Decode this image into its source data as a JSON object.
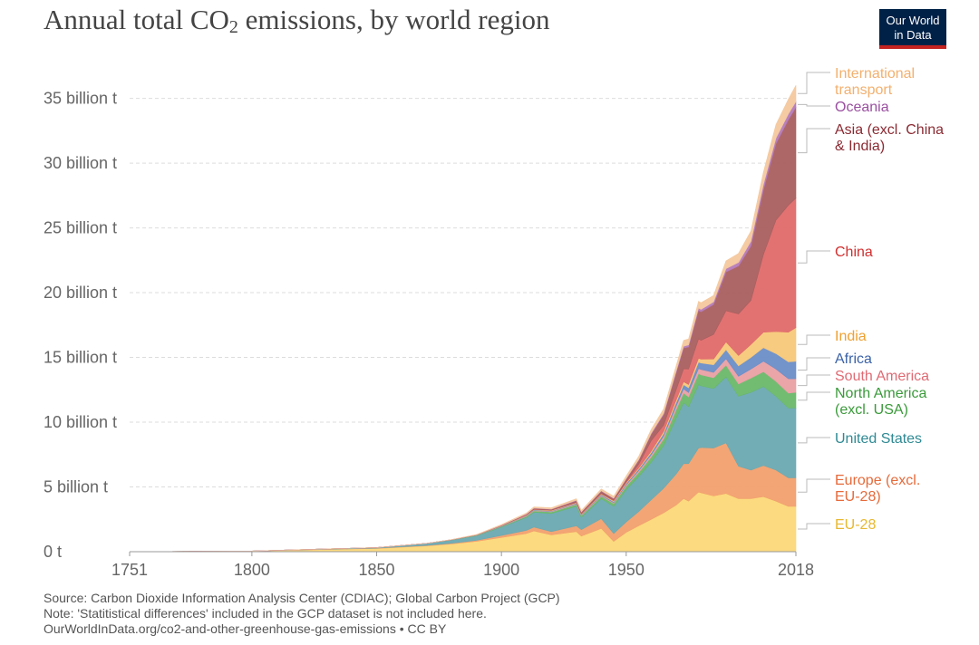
{
  "header": {
    "title_main": "Annual total CO",
    "title_sub": "2",
    "title_rest": " emissions, by world region",
    "logo_line1": "Our World",
    "logo_line2": "in Data"
  },
  "footer": {
    "source": "Source: Carbon Dioxide Information Analysis Center (CDIAC); Global Carbon Project (GCP)",
    "note": "Note: 'Statitistical differences' included in the GCP dataset is not included here.",
    "url": "OurWorldInData.org/co2-and-other-greenhouse-gas-emissions • CC BY"
  },
  "chart_data": {
    "type": "area",
    "stacked": true,
    "grid": "horizontal dashed",
    "legend": "right, end labels",
    "x": [
      1751,
      1800,
      1850,
      1870,
      1880,
      1890,
      1900,
      1910,
      1913,
      1920,
      1930,
      1932,
      1940,
      1945,
      1950,
      1955,
      1960,
      1965,
      1970,
      1973,
      1975,
      1979,
      1980,
      1985,
      1990,
      1995,
      2000,
      2005,
      2010,
      2015,
      2018
    ],
    "xlim": [
      1751,
      2018
    ],
    "x_ticks": [
      "1751",
      "1800",
      "1850",
      "1900",
      "1950",
      "2018"
    ],
    "ylim": [
      0,
      37000000000
    ],
    "y_ticks": [
      {
        "value": 0,
        "label": "0 t"
      },
      {
        "value": 5000000000,
        "label": "5 billion t"
      },
      {
        "value": 10000000000,
        "label": "10 billion t"
      },
      {
        "value": 15000000000,
        "label": "15 billion t"
      },
      {
        "value": 20000000000,
        "label": "20 billion t"
      },
      {
        "value": 25000000000,
        "label": "25 billion t"
      },
      {
        "value": 30000000000,
        "label": "30 billion t"
      },
      {
        "value": 35000000000,
        "label": "35 billion t"
      }
    ],
    "series": [
      {
        "name": "EU-28",
        "color": "#fcd878",
        "label_color": "#e8b830",
        "values": [
          0,
          0.05,
          0.25,
          0.45,
          0.6,
          0.8,
          1.1,
          1.4,
          1.6,
          1.3,
          1.55,
          1.2,
          1.8,
          0.8,
          1.5,
          2.0,
          2.5,
          3.0,
          3.6,
          4.1,
          3.9,
          4.6,
          4.55,
          4.3,
          4.5,
          4.1,
          4.1,
          4.25,
          3.9,
          3.5,
          3.5
        ]
      },
      {
        "name": "Europe (excl. EU-28)",
        "color": "#f2a06e",
        "label_color": "#e66a3a",
        "values": [
          0,
          0,
          0.02,
          0.03,
          0.05,
          0.08,
          0.15,
          0.25,
          0.3,
          0.25,
          0.45,
          0.5,
          0.75,
          0.6,
          0.8,
          1.1,
          1.5,
          1.9,
          2.4,
          2.7,
          2.9,
          3.4,
          3.5,
          3.7,
          3.9,
          2.5,
          2.2,
          2.4,
          2.4,
          2.2,
          2.2
        ]
      },
      {
        "name": "United States",
        "color": "#6aa9b1",
        "label_color": "#2f8a94",
        "values": [
          0,
          0,
          0.05,
          0.15,
          0.25,
          0.35,
          0.65,
          1.0,
          1.15,
          1.4,
          1.5,
          0.95,
          1.55,
          2.1,
          2.5,
          2.7,
          2.9,
          3.3,
          4.3,
          4.7,
          4.4,
          4.9,
          4.75,
          4.6,
          5.1,
          5.4,
          6.0,
          6.1,
          5.7,
          5.4,
          5.4
        ]
      },
      {
        "name": "North America (excl. USA)",
        "color": "#6ab86a",
        "label_color": "#3a9a3a",
        "values": [
          0,
          0,
          0,
          0.01,
          0.02,
          0.03,
          0.05,
          0.08,
          0.1,
          0.12,
          0.15,
          0.12,
          0.18,
          0.22,
          0.26,
          0.32,
          0.4,
          0.5,
          0.65,
          0.75,
          0.75,
          0.85,
          0.85,
          0.82,
          0.9,
          0.95,
          1.1,
          1.15,
          1.15,
          1.15,
          1.2
        ]
      },
      {
        "name": "South America",
        "color": "#e9a0a4",
        "label_color": "#e06a73",
        "values": [
          0,
          0,
          0,
          0,
          0,
          0.01,
          0.02,
          0.03,
          0.04,
          0.04,
          0.05,
          0.04,
          0.06,
          0.07,
          0.1,
          0.13,
          0.18,
          0.22,
          0.28,
          0.32,
          0.34,
          0.4,
          0.42,
          0.43,
          0.5,
          0.6,
          0.7,
          0.8,
          0.95,
          1.1,
          1.05
        ]
      },
      {
        "name": "Africa",
        "color": "#6a8ec7",
        "label_color": "#3b62a8",
        "values": [
          0,
          0,
          0,
          0,
          0,
          0.01,
          0.02,
          0.03,
          0.04,
          0.04,
          0.05,
          0.05,
          0.07,
          0.08,
          0.1,
          0.13,
          0.16,
          0.2,
          0.28,
          0.33,
          0.37,
          0.48,
          0.5,
          0.58,
          0.7,
          0.8,
          0.9,
          1.05,
          1.2,
          1.3,
          1.35
        ]
      },
      {
        "name": "India",
        "color": "#f7c879",
        "label_color": "#f0a030",
        "values": [
          0,
          0,
          0,
          0,
          0,
          0.01,
          0.02,
          0.03,
          0.03,
          0.03,
          0.04,
          0.04,
          0.05,
          0.06,
          0.07,
          0.08,
          0.12,
          0.16,
          0.2,
          0.22,
          0.25,
          0.3,
          0.3,
          0.45,
          0.6,
          0.8,
          1.0,
          1.2,
          1.7,
          2.3,
          2.6
        ]
      },
      {
        "name": "China",
        "color": "#e06a6a",
        "label_color": "#d22f2f",
        "values": [
          0,
          0,
          0,
          0,
          0,
          0,
          0.01,
          0.02,
          0.02,
          0.02,
          0.03,
          0.03,
          0.04,
          0.05,
          0.08,
          0.3,
          0.8,
          0.5,
          0.8,
          1.0,
          1.2,
          1.5,
          1.45,
          1.9,
          2.4,
          3.2,
          3.4,
          6.0,
          8.6,
          9.8,
          10.0
        ]
      },
      {
        "name": "Asia (excl. China & India)",
        "color": "#a95f5f",
        "label_color": "#8b2a32",
        "values": [
          0,
          0,
          0,
          0,
          0,
          0.01,
          0.02,
          0.05,
          0.07,
          0.07,
          0.12,
          0.12,
          0.18,
          0.12,
          0.2,
          0.3,
          0.5,
          0.8,
          1.3,
          1.6,
          1.7,
          2.2,
          2.2,
          2.3,
          3.0,
          3.7,
          4.2,
          5.0,
          5.9,
          6.6,
          7.0
        ]
      },
      {
        "name": "Oceania",
        "color": "#b57ab8",
        "label_color": "#9a4fa0",
        "values": [
          0,
          0,
          0,
          0,
          0.01,
          0.01,
          0.01,
          0.02,
          0.02,
          0.02,
          0.03,
          0.03,
          0.03,
          0.03,
          0.04,
          0.05,
          0.07,
          0.09,
          0.12,
          0.14,
          0.15,
          0.18,
          0.19,
          0.21,
          0.25,
          0.28,
          0.36,
          0.41,
          0.43,
          0.44,
          0.45
        ]
      },
      {
        "name": "International transport",
        "color": "#f4c89e",
        "label_color": "#f3b06e",
        "values": [
          0,
          0,
          0,
          0.005,
          0.01,
          0.02,
          0.05,
          0.08,
          0.09,
          0.1,
          0.12,
          0.1,
          0.13,
          0.15,
          0.2,
          0.25,
          0.3,
          0.35,
          0.42,
          0.46,
          0.46,
          0.52,
          0.52,
          0.5,
          0.6,
          0.7,
          0.8,
          0.95,
          1.05,
          1.15,
          1.25
        ]
      }
    ],
    "value_unit": "billion t"
  }
}
